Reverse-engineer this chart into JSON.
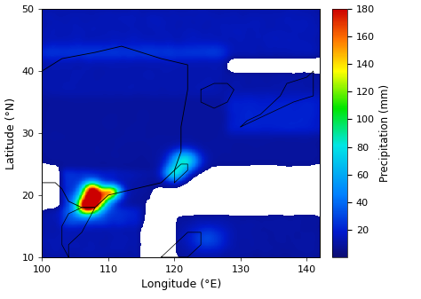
{
  "lon_min": 100,
  "lon_max": 142,
  "lat_min": 10,
  "lat_max": 50,
  "xlabel": "Longitude (°E)",
  "ylabel": "Latitude (°N)",
  "cbar_label": "Precipitation (mm)",
  "cbar_ticks": [
    20,
    40,
    60,
    80,
    100,
    120,
    140,
    160,
    180
  ],
  "vmin": 0,
  "vmax": 180,
  "xticks": [
    100,
    110,
    120,
    130,
    140
  ],
  "yticks": [
    10,
    20,
    30,
    40,
    50
  ],
  "seed": 42,
  "coast_color": "#000000",
  "bg_color": "#ffffff"
}
